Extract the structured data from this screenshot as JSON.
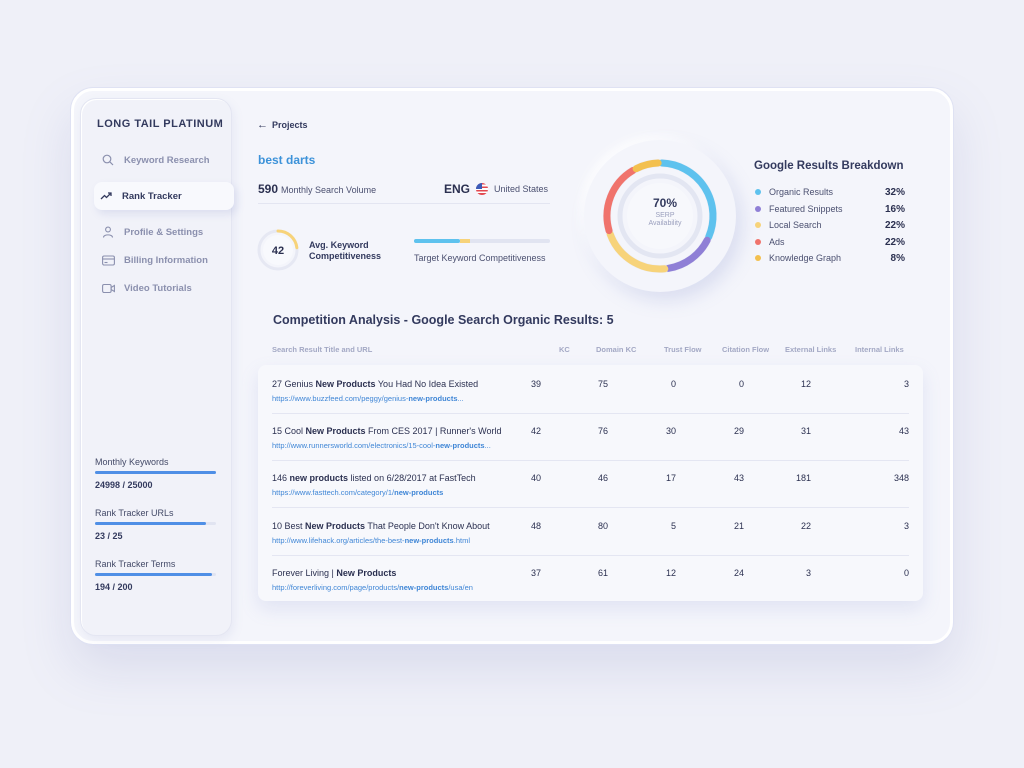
{
  "sidebar": {
    "brand": "LONG TAIL PLATINUM",
    "items": [
      {
        "label": "Keyword Research",
        "icon": "search-icon"
      },
      {
        "label": "Rank Tracker",
        "icon": "trend-icon",
        "active": true
      },
      {
        "label": "Profile & Settings",
        "icon": "user-icon"
      },
      {
        "label": "Billing Information",
        "icon": "credit-card-icon"
      },
      {
        "label": "Video Tutorials",
        "icon": "video-icon"
      }
    ],
    "stats": [
      {
        "label": "Monthly Keywords",
        "value": "24998 / 25000",
        "fraction": 0.9999
      },
      {
        "label": "Rank Tracker URLs",
        "value": "23 / 25",
        "fraction": 0.92
      },
      {
        "label": "Rank Tracker Terms",
        "value": "194 / 200",
        "fraction": 0.97
      }
    ]
  },
  "header": {
    "back_label": "Projects",
    "keyword": "best darts",
    "volume_value": "590",
    "volume_label": "Monthly Search Volume",
    "lang_code": "ENG",
    "country": "United States"
  },
  "competitiveness": {
    "avg_value": "42",
    "avg_label_line1": "Avg. Keyword",
    "avg_label_line2": "Competitiveness",
    "avg_fraction": 0.42,
    "target_label": "Target Keyword Competitiveness",
    "target_blue_fraction": 0.34,
    "target_yellow_fraction": 0.07
  },
  "serp": {
    "value": "70%",
    "sub_line1": "SERP",
    "sub_line2": "Availability"
  },
  "breakdown": {
    "title": "Google Results Breakdown",
    "items": [
      {
        "label": "Organic Results",
        "pct": "32%",
        "color": "#5ec2ee"
      },
      {
        "label": "Featured Snippets",
        "pct": "16%",
        "color": "#8f7fd6"
      },
      {
        "label": "Local Search",
        "pct": "22%",
        "color": "#f7d37a"
      },
      {
        "label": "Ads",
        "pct": "22%",
        "color": "#f0736c"
      },
      {
        "label": "Knowledge Graph",
        "pct": "8%",
        "color": "#f3c04f"
      }
    ]
  },
  "competition": {
    "title": "Competition Analysis - Google Search Organic Results: 5",
    "columns": [
      "Search Result Title and URL",
      "KC",
      "Domain KC",
      "Trust Flow",
      "Citation Flow",
      "External Links",
      "Internal Links"
    ],
    "rows": [
      {
        "t1": "27 Genius ",
        "tb": "New Products",
        "t2": " You Had No Idea Existed",
        "u1": "https://www.buzzfeed.com/peggy/genius-",
        "ub": "new-products",
        "u2": "...",
        "kc": "39",
        "dkc": "75",
        "tf": "0",
        "cf": "0",
        "ext": "12",
        "int": "3"
      },
      {
        "t1": "15 Cool ",
        "tb": "New Products",
        "t2": " From CES 2017 | Runner's World",
        "u1": "http://www.runnersworld.com/electronics/15-cool-",
        "ub": "new-products",
        "u2": "...",
        "kc": "42",
        "dkc": "76",
        "tf": "30",
        "cf": "29",
        "ext": "31",
        "int": "43"
      },
      {
        "t1": "146 ",
        "tb": "new products",
        "t2": " listed on 6/28/2017 at FastTech",
        "u1": "https://www.fasttech.com/category/1/",
        "ub": "new-products",
        "u2": "",
        "kc": "40",
        "dkc": "46",
        "tf": "17",
        "cf": "43",
        "ext": "181",
        "int": "348"
      },
      {
        "t1": "10 Best ",
        "tb": "New Products",
        "t2": " That People Don't Know About",
        "u1": "http://www.lifehack.org/articles/the-best-",
        "ub": "new-products",
        "u2": ".html",
        "kc": "48",
        "dkc": "80",
        "tf": "5",
        "cf": "21",
        "ext": "22",
        "int": "3"
      },
      {
        "t1": "Forever Living | ",
        "tb": "New Products",
        "t2": "",
        "u1": "http://foreverliving.com/page/products/",
        "ub": "new-products",
        "u2": "/usa/en",
        "kc": "37",
        "dkc": "61",
        "tf": "12",
        "cf": "24",
        "ext": "3",
        "int": "0"
      }
    ]
  }
}
